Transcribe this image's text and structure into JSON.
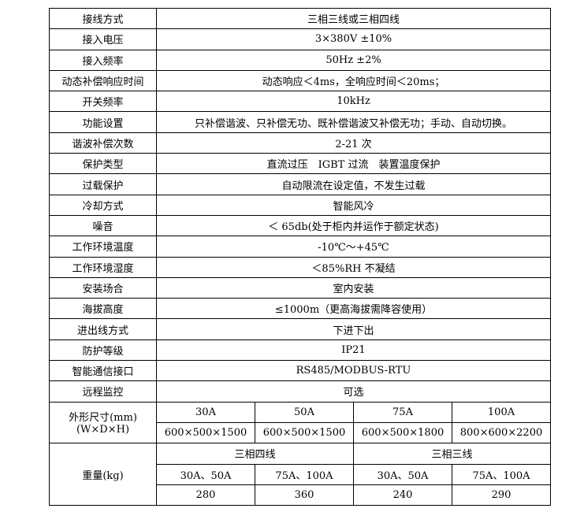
{
  "rows": [
    {
      "label": "接线方式",
      "value": "三相三线或三相四线"
    },
    {
      "label": "接入电压",
      "value": "3×380V ±10%"
    },
    {
      "label": "接入频率",
      "value": "50Hz ±2%"
    },
    {
      "label": "动态补偿响应时间",
      "value": "动态响应＜4ms，全响应时间＜20ms；"
    },
    {
      "label": "开关频率",
      "value": "10kHz"
    },
    {
      "label": "功能设置",
      "value": "只补偿谐波、只补偿无功、既补偿谐波又补偿无功；手动、自动切换。"
    },
    {
      "label": "谐波补偿次数",
      "value": "2-21 次"
    },
    {
      "label": "保护类型",
      "value": "直流过压　IGBT 过流　装置温度保护"
    },
    {
      "label": "过载保护",
      "value": "自动限流在设定值，不发生过载"
    },
    {
      "label": "冷却方式",
      "value": "智能风冷"
    },
    {
      "label": "噪音",
      "value": "＜ 65db(处于柜内并运作于额定状态)"
    },
    {
      "label": "工作环境温度",
      "value": "-10℃～+45℃"
    },
    {
      "label": "工作环境湿度",
      "value": "＜85%RH 不凝结"
    },
    {
      "label": "安装场合",
      "value": "室内安装"
    },
    {
      "label": "海拔高度",
      "value": "≤1000m（更高海拔需降容使用）"
    },
    {
      "label": "进出线方式",
      "value": "下进下出"
    },
    {
      "label": "防护等级",
      "value": "IP21"
    },
    {
      "label": "智能通信接口",
      "value": "RS485/MODBUS-RTU"
    },
    {
      "label": "远程监控",
      "value": "可选"
    }
  ],
  "dimensions": {
    "label_line1": "外形尺寸(mm)",
    "label_line2": "(W×D×H)",
    "models": [
      "30A",
      "50A",
      "75A",
      "100A"
    ],
    "sizes": [
      "600×500×1500",
      "600×500×1500",
      "600×500×1800",
      "800×600×2200"
    ]
  },
  "weight": {
    "label": "重量(kg)",
    "groups": [
      "三相四线",
      "三相三线"
    ],
    "models": [
      "30A、50A",
      "75A、100A",
      "30A、50A",
      "75A、100A"
    ],
    "values": [
      "280",
      "360",
      "240",
      "290"
    ]
  }
}
